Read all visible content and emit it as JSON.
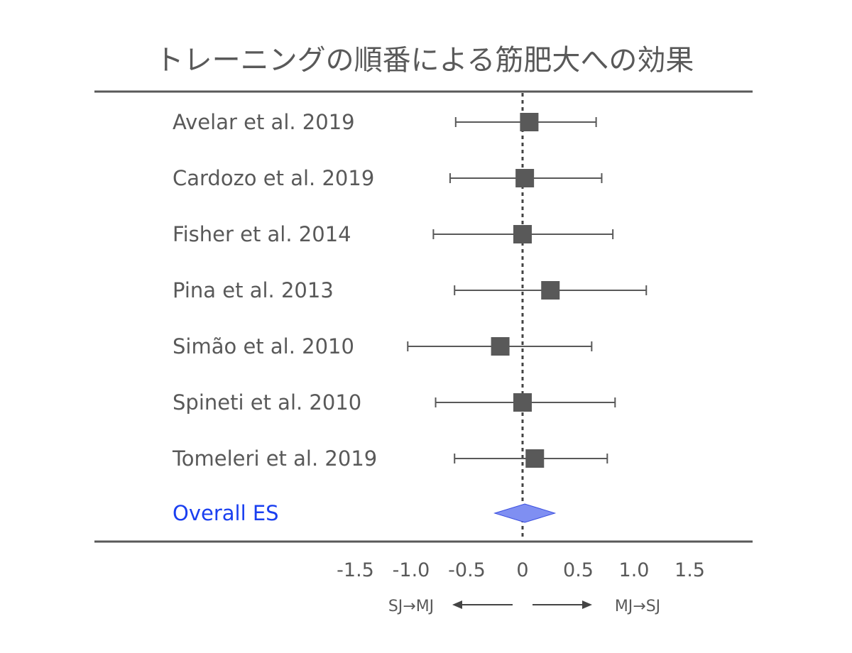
{
  "chart_data": {
    "type": "forest",
    "title": "トレーニングの順番による筋肥大への効果",
    "xlim": [
      -1.5,
      1.5
    ],
    "xticks": [
      "-1.5",
      "-1.0",
      "-0.5",
      "0",
      "0.5",
      "1.0",
      "1.5"
    ],
    "xtick_values": [
      -1.5,
      -1.0,
      -0.5,
      0,
      0.5,
      1.0,
      1.5
    ],
    "reference_line": 0,
    "direction_left": "SJ→MJ",
    "direction_right": "MJ→SJ",
    "studies": [
      {
        "label": "Avelar et al. 2019",
        "es": 0.06,
        "lower": -0.6,
        "upper": 0.66
      },
      {
        "label": "Cardozo et al. 2019",
        "es": 0.02,
        "lower": -0.65,
        "upper": 0.71
      },
      {
        "label": "Fisher et al. 2014",
        "es": 0.0,
        "lower": -0.8,
        "upper": 0.81
      },
      {
        "label": "Pina et al. 2013",
        "es": 0.25,
        "lower": -0.61,
        "upper": 1.11
      },
      {
        "label": "Simão et al. 2010",
        "es": -0.2,
        "lower": -1.03,
        "upper": 0.62
      },
      {
        "label": "Spineti et al. 2010",
        "es": 0.0,
        "lower": -0.78,
        "upper": 0.83
      },
      {
        "label": "Tomeleri et al. 2019",
        "es": 0.11,
        "lower": -0.61,
        "upper": 0.76
      }
    ],
    "overall": {
      "label": "Overall ES",
      "es": 0.02,
      "lower": -0.25,
      "upper": 0.29
    },
    "colors": {
      "marker": "#595959",
      "overall_fill": "#7f8ff2",
      "overall_stroke": "#3b4fe0",
      "overall_label": "#1a3ff0",
      "text": "#595959"
    }
  }
}
